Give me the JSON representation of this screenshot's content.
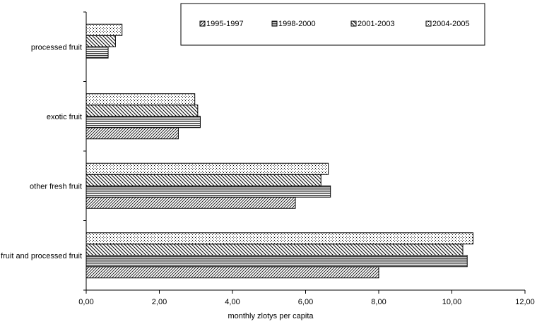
{
  "chart_data": {
    "type": "bar",
    "orientation": "horizontal",
    "title": "",
    "xlabel": "monthly zlotys per capita",
    "ylabel": "",
    "xlim": [
      0,
      12
    ],
    "xticks": [
      "0,00",
      "2,00",
      "4,00",
      "6,00",
      "8,00",
      "10,00",
      "12,00"
    ],
    "grid": false,
    "legend_position": "top-right",
    "categories": [
      "processed fruit",
      "exotic fruit",
      "other fresh fruit",
      "fruit and processed fruit"
    ],
    "series": [
      {
        "name": "1995-1997",
        "pattern": "diagonal-dense",
        "values": [
          0.0,
          2.52,
          5.72,
          8.0
        ]
      },
      {
        "name": "1998-2000",
        "pattern": "horizontal-lines",
        "values": [
          0.6,
          3.12,
          6.68,
          10.42
        ]
      },
      {
        "name": "2001-2003",
        "pattern": "diagonal-lines",
        "values": [
          0.8,
          3.05,
          6.42,
          10.3
        ]
      },
      {
        "name": "2004-2005",
        "pattern": "dots",
        "values": [
          0.98,
          2.97,
          6.62,
          10.58
        ]
      }
    ]
  }
}
